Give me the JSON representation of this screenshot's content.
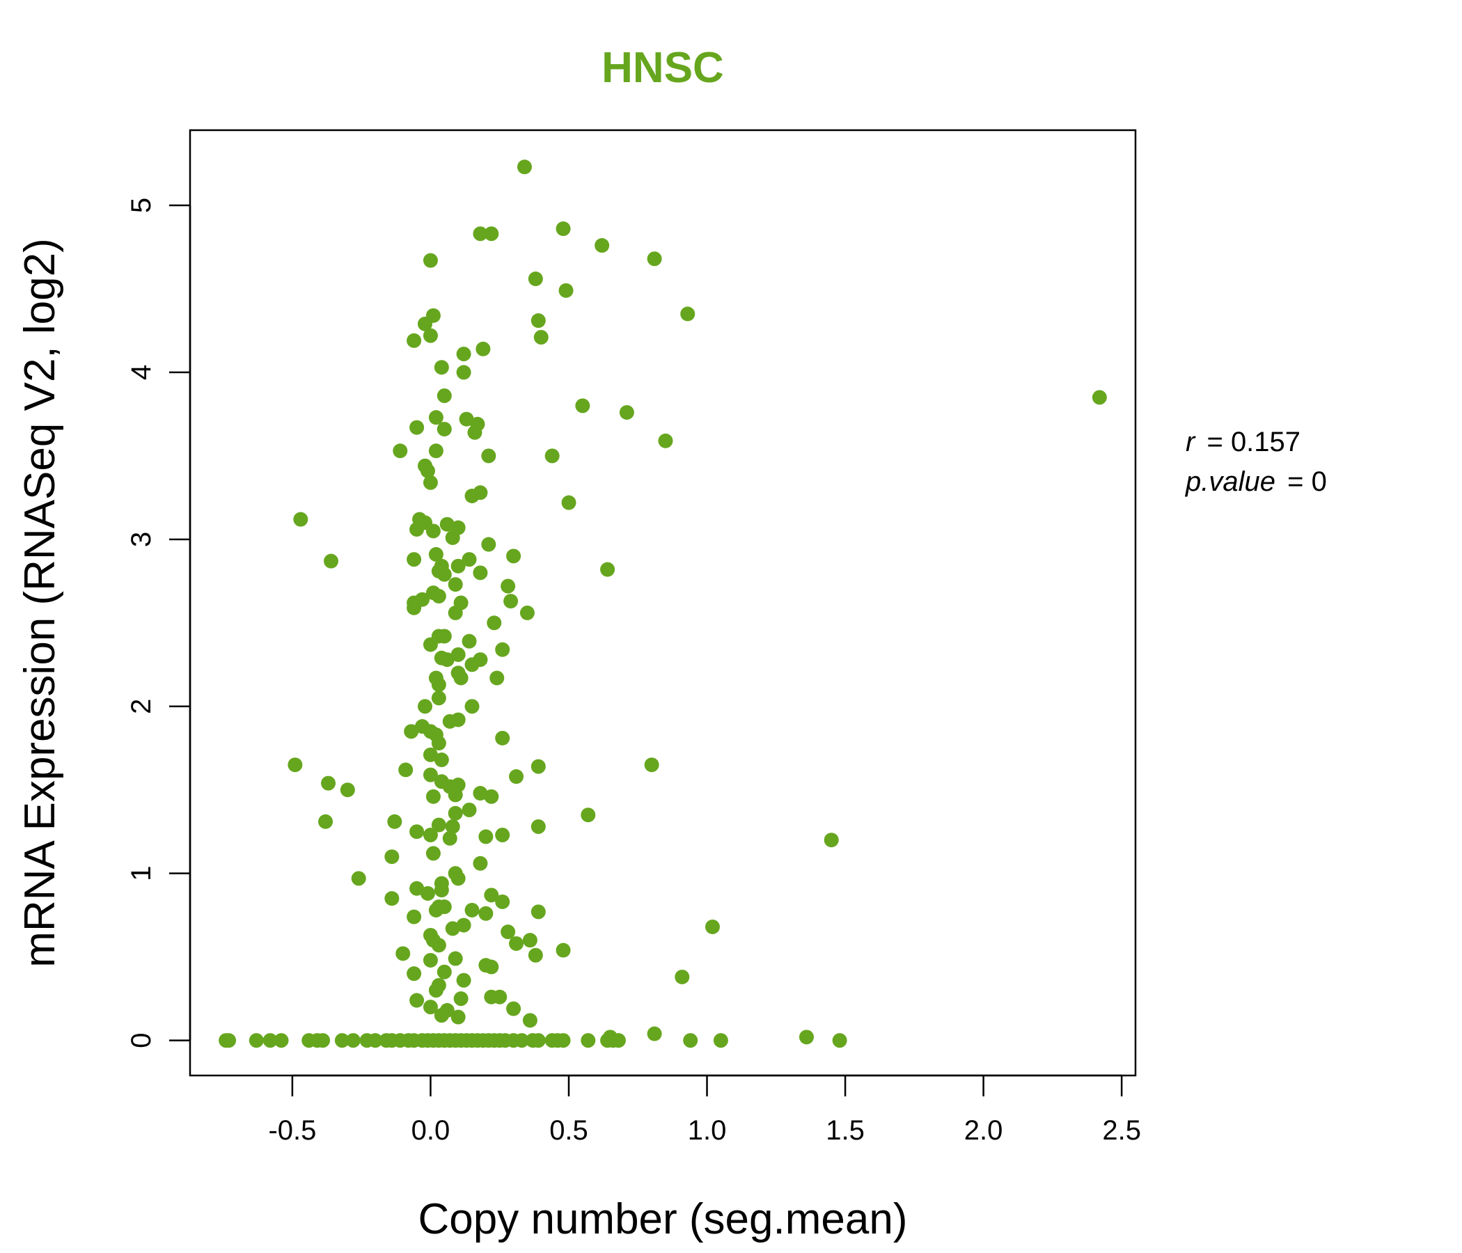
{
  "chart_data": {
    "type": "scatter",
    "title": "HNSC",
    "xlabel": "Copy number (seg.mean)",
    "ylabel": "mRNA Expression (RNASeq V2, log2)",
    "xlim": [
      -0.87,
      2.55
    ],
    "ylim": [
      -0.21,
      5.45
    ],
    "x_ticks": [
      -0.5,
      0.0,
      0.5,
      1.0,
      1.5,
      2.0,
      2.5
    ],
    "x_tick_labels": [
      "-0.5",
      "0.0",
      "0.5",
      "1.0",
      "1.5",
      "2.0",
      "2.5"
    ],
    "y_ticks": [
      0,
      1,
      2,
      3,
      4,
      5
    ],
    "y_tick_labels": [
      "0",
      "1",
      "2",
      "3",
      "4",
      "5"
    ],
    "grid": false,
    "legend": "none",
    "colors": {
      "title": "#66a61e",
      "points": "#66a61e",
      "axes": "#000000"
    },
    "stats": {
      "r_symbol": "r",
      "r_value": "0.157",
      "p_symbol": "p.value",
      "p_value": "0"
    },
    "points": [
      [
        0.34,
        5.23
      ],
      [
        0.48,
        4.86
      ],
      [
        0.18,
        4.83
      ],
      [
        0.22,
        4.83
      ],
      [
        0.62,
        4.76
      ],
      [
        0.81,
        4.68
      ],
      [
        0.0,
        4.67
      ],
      [
        0.38,
        4.56
      ],
      [
        0.49,
        4.49
      ],
      [
        0.93,
        4.35
      ],
      [
        0.01,
        4.34
      ],
      [
        0.39,
        4.31
      ],
      [
        -0.02,
        4.29
      ],
      [
        0.0,
        4.22
      ],
      [
        0.4,
        4.21
      ],
      [
        -0.06,
        4.19
      ],
      [
        0.19,
        4.14
      ],
      [
        0.12,
        4.11
      ],
      [
        0.04,
        4.03
      ],
      [
        0.12,
        4.0
      ],
      [
        2.42,
        3.85
      ],
      [
        0.05,
        3.86
      ],
      [
        0.55,
        3.8
      ],
      [
        0.71,
        3.76
      ],
      [
        0.02,
        3.73
      ],
      [
        0.13,
        3.72
      ],
      [
        0.17,
        3.69
      ],
      [
        -0.05,
        3.67
      ],
      [
        0.05,
        3.66
      ],
      [
        0.16,
        3.64
      ],
      [
        0.85,
        3.59
      ],
      [
        -0.11,
        3.53
      ],
      [
        0.02,
        3.53
      ],
      [
        0.21,
        3.5
      ],
      [
        0.44,
        3.5
      ],
      [
        -0.02,
        3.44
      ],
      [
        -0.01,
        3.41
      ],
      [
        0.0,
        3.34
      ],
      [
        0.18,
        3.28
      ],
      [
        0.15,
        3.26
      ],
      [
        0.5,
        3.22
      ],
      [
        -0.47,
        3.12
      ],
      [
        -0.04,
        3.12
      ],
      [
        -0.02,
        3.1
      ],
      [
        0.06,
        3.09
      ],
      [
        0.1,
        3.07
      ],
      [
        -0.05,
        3.06
      ],
      [
        0.01,
        3.05
      ],
      [
        0.08,
        3.01
      ],
      [
        0.21,
        2.97
      ],
      [
        0.02,
        2.91
      ],
      [
        0.3,
        2.9
      ],
      [
        0.14,
        2.88
      ],
      [
        -0.06,
        2.88
      ],
      [
        -0.36,
        2.87
      ],
      [
        0.1,
        2.84
      ],
      [
        0.04,
        2.84
      ],
      [
        0.03,
        2.81
      ],
      [
        0.64,
        2.82
      ],
      [
        0.18,
        2.8
      ],
      [
        0.05,
        2.79
      ],
      [
        0.09,
        2.73
      ],
      [
        0.28,
        2.72
      ],
      [
        0.01,
        2.68
      ],
      [
        -0.03,
        2.64
      ],
      [
        0.03,
        2.66
      ],
      [
        -0.06,
        2.62
      ],
      [
        0.11,
        2.62
      ],
      [
        0.29,
        2.63
      ],
      [
        -0.06,
        2.59
      ],
      [
        0.35,
        2.56
      ],
      [
        0.09,
        2.56
      ],
      [
        0.23,
        2.5
      ],
      [
        0.03,
        2.42
      ],
      [
        0.05,
        2.42
      ],
      [
        0.14,
        2.39
      ],
      [
        0.0,
        2.37
      ],
      [
        0.26,
        2.34
      ],
      [
        0.1,
        2.31
      ],
      [
        0.04,
        2.29
      ],
      [
        0.06,
        2.28
      ],
      [
        0.18,
        2.28
      ],
      [
        0.15,
        2.25
      ],
      [
        0.1,
        2.2
      ],
      [
        0.11,
        2.17
      ],
      [
        0.24,
        2.17
      ],
      [
        0.02,
        2.17
      ],
      [
        0.03,
        2.13
      ],
      [
        0.03,
        2.05
      ],
      [
        0.15,
        2.0
      ],
      [
        -0.02,
        2.0
      ],
      [
        0.1,
        1.92
      ],
      [
        0.07,
        1.91
      ],
      [
        -0.03,
        1.88
      ],
      [
        -0.07,
        1.85
      ],
      [
        0.0,
        1.85
      ],
      [
        0.02,
        1.83
      ],
      [
        0.26,
        1.81
      ],
      [
        0.03,
        1.78
      ],
      [
        0.8,
        1.65
      ],
      [
        -0.49,
        1.65
      ],
      [
        0.39,
        1.64
      ],
      [
        0.0,
        1.71
      ],
      [
        0.04,
        1.68
      ],
      [
        -0.09,
        1.62
      ],
      [
        0.31,
        1.58
      ],
      [
        0.0,
        1.59
      ],
      [
        -0.37,
        1.54
      ],
      [
        0.04,
        1.55
      ],
      [
        0.1,
        1.53
      ],
      [
        0.07,
        1.52
      ],
      [
        -0.3,
        1.5
      ],
      [
        0.18,
        1.48
      ],
      [
        0.09,
        1.47
      ],
      [
        0.22,
        1.46
      ],
      [
        0.01,
        1.46
      ],
      [
        0.14,
        1.38
      ],
      [
        0.57,
        1.35
      ],
      [
        0.09,
        1.36
      ],
      [
        -0.38,
        1.31
      ],
      [
        -0.13,
        1.31
      ],
      [
        0.03,
        1.29
      ],
      [
        0.08,
        1.28
      ],
      [
        0.39,
        1.28
      ],
      [
        -0.05,
        1.25
      ],
      [
        0.0,
        1.23
      ],
      [
        0.2,
        1.22
      ],
      [
        0.26,
        1.23
      ],
      [
        0.07,
        1.21
      ],
      [
        1.45,
        1.2
      ],
      [
        0.01,
        1.12
      ],
      [
        -0.14,
        1.1
      ],
      [
        0.18,
        1.06
      ],
      [
        0.09,
        1.0
      ],
      [
        0.1,
        0.97
      ],
      [
        -0.26,
        0.97
      ],
      [
        0.04,
        0.94
      ],
      [
        -0.05,
        0.91
      ],
      [
        0.04,
        0.9
      ],
      [
        -0.01,
        0.88
      ],
      [
        0.22,
        0.87
      ],
      [
        -0.14,
        0.85
      ],
      [
        0.26,
        0.83
      ],
      [
        0.03,
        0.8
      ],
      [
        0.05,
        0.8
      ],
      [
        0.02,
        0.78
      ],
      [
        0.15,
        0.78
      ],
      [
        0.2,
        0.76
      ],
      [
        0.39,
        0.77
      ],
      [
        -0.06,
        0.74
      ],
      [
        0.12,
        0.69
      ],
      [
        1.02,
        0.68
      ],
      [
        0.08,
        0.67
      ],
      [
        0.28,
        0.65
      ],
      [
        0.0,
        0.63
      ],
      [
        0.01,
        0.6
      ],
      [
        0.36,
        0.6
      ],
      [
        0.31,
        0.58
      ],
      [
        0.03,
        0.57
      ],
      [
        0.48,
        0.54
      ],
      [
        -0.1,
        0.52
      ],
      [
        0.38,
        0.51
      ],
      [
        0.09,
        0.49
      ],
      [
        0.0,
        0.48
      ],
      [
        0.22,
        0.44
      ],
      [
        0.2,
        0.45
      ],
      [
        0.05,
        0.41
      ],
      [
        -0.06,
        0.4
      ],
      [
        0.91,
        0.38
      ],
      [
        0.12,
        0.36
      ],
      [
        0.03,
        0.33
      ],
      [
        0.02,
        0.3
      ],
      [
        0.11,
        0.25
      ],
      [
        0.22,
        0.26
      ],
      [
        0.25,
        0.26
      ],
      [
        -0.05,
        0.24
      ],
      [
        0.0,
        0.2
      ],
      [
        0.06,
        0.18
      ],
      [
        0.04,
        0.15
      ],
      [
        0.3,
        0.19
      ],
      [
        0.1,
        0.14
      ],
      [
        0.36,
        0.12
      ],
      [
        0.81,
        0.04
      ],
      [
        1.36,
        0.02
      ],
      [
        0.65,
        0.02
      ],
      [
        -0.74,
        0.0
      ],
      [
        -0.73,
        0.0
      ],
      [
        -0.63,
        0.0
      ],
      [
        -0.58,
        0.0
      ],
      [
        -0.54,
        0.0
      ],
      [
        -0.44,
        0.0
      ],
      [
        -0.41,
        0.0
      ],
      [
        -0.39,
        0.0
      ],
      [
        -0.32,
        0.0
      ],
      [
        -0.28,
        0.0
      ],
      [
        -0.23,
        0.0
      ],
      [
        -0.2,
        0.0
      ],
      [
        -0.16,
        0.0
      ],
      [
        -0.14,
        0.0
      ],
      [
        -0.11,
        0.0
      ],
      [
        -0.08,
        0.0
      ],
      [
        -0.06,
        0.0
      ],
      [
        -0.03,
        0.0
      ],
      [
        -0.01,
        0.0
      ],
      [
        0.01,
        0.0
      ],
      [
        0.03,
        0.0
      ],
      [
        0.05,
        0.0
      ],
      [
        0.07,
        0.0
      ],
      [
        0.09,
        0.0
      ],
      [
        0.11,
        0.0
      ],
      [
        0.13,
        0.0
      ],
      [
        0.15,
        0.0
      ],
      [
        0.17,
        0.0
      ],
      [
        0.19,
        0.0
      ],
      [
        0.21,
        0.0
      ],
      [
        0.23,
        0.0
      ],
      [
        0.25,
        0.0
      ],
      [
        0.27,
        0.0
      ],
      [
        0.3,
        0.0
      ],
      [
        0.33,
        0.0
      ],
      [
        0.37,
        0.0
      ],
      [
        0.39,
        0.0
      ],
      [
        0.44,
        0.0
      ],
      [
        0.46,
        0.0
      ],
      [
        0.48,
        0.0
      ],
      [
        0.57,
        0.0
      ],
      [
        0.64,
        0.0
      ],
      [
        0.66,
        0.0
      ],
      [
        0.68,
        0.0
      ],
      [
        0.94,
        0.0
      ],
      [
        1.05,
        0.0
      ],
      [
        1.48,
        0.0
      ]
    ]
  }
}
